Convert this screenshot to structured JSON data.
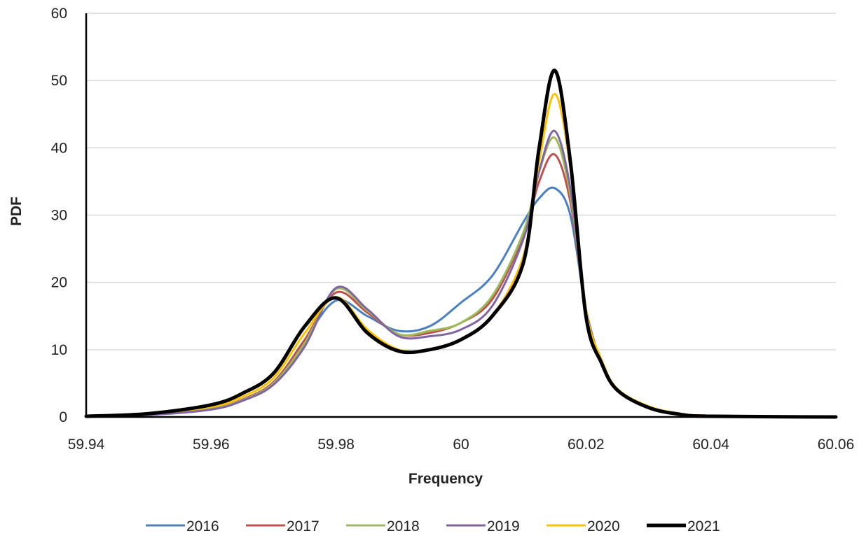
{
  "chart_data": {
    "type": "line",
    "title": "",
    "xlabel": "Frequency",
    "ylabel": "PDF",
    "xlim": [
      59.94,
      60.06
    ],
    "ylim": [
      0,
      60
    ],
    "xticks": [
      59.94,
      59.96,
      59.98,
      60,
      60.02,
      60.04,
      60.06
    ],
    "xtick_labels": [
      "59.94",
      "59.96",
      "59.98",
      "60",
      "60.02",
      "60.04",
      "60.06"
    ],
    "yticks": [
      0,
      10,
      20,
      30,
      40,
      50,
      60
    ],
    "ytick_labels": [
      "0",
      "10",
      "20",
      "30",
      "40",
      "50",
      "60"
    ],
    "grid": "horizontal",
    "legend_position": "bottom",
    "series": [
      {
        "name": "2016",
        "color": "#4a7fc1",
        "points": [
          [
            59.94,
            0.1
          ],
          [
            59.95,
            0.4
          ],
          [
            59.96,
            1.2
          ],
          [
            59.965,
            2.5
          ],
          [
            59.97,
            5.0
          ],
          [
            59.975,
            11.5
          ],
          [
            59.98,
            17.3
          ],
          [
            59.985,
            15.0
          ],
          [
            59.99,
            12.8
          ],
          [
            59.995,
            13.5
          ],
          [
            60.0,
            17.0
          ],
          [
            60.005,
            21.0
          ],
          [
            60.01,
            29.0
          ],
          [
            60.0125,
            32.5
          ],
          [
            60.015,
            34.0
          ],
          [
            60.0175,
            30.0
          ],
          [
            60.02,
            16.0
          ],
          [
            60.0225,
            8.0
          ],
          [
            60.025,
            4.0
          ],
          [
            60.03,
            1.5
          ],
          [
            60.035,
            0.5
          ],
          [
            60.04,
            0.2
          ],
          [
            60.06,
            0.0
          ]
        ]
      },
      {
        "name": "2017",
        "color": "#c0504d",
        "points": [
          [
            59.94,
            0.1
          ],
          [
            59.95,
            0.4
          ],
          [
            59.96,
            1.2
          ],
          [
            59.965,
            2.6
          ],
          [
            59.97,
            5.2
          ],
          [
            59.975,
            11.5
          ],
          [
            59.98,
            18.5
          ],
          [
            59.985,
            15.5
          ],
          [
            59.99,
            12.3
          ],
          [
            59.995,
            12.5
          ],
          [
            60.0,
            14.0
          ],
          [
            60.005,
            17.5
          ],
          [
            60.01,
            27.0
          ],
          [
            60.0125,
            35.0
          ],
          [
            60.015,
            39.0
          ],
          [
            60.0175,
            32.0
          ],
          [
            60.02,
            16.0
          ],
          [
            60.0225,
            8.0
          ],
          [
            60.025,
            4.0
          ],
          [
            60.03,
            1.5
          ],
          [
            60.035,
            0.5
          ],
          [
            60.04,
            0.2
          ],
          [
            60.06,
            0.0
          ]
        ]
      },
      {
        "name": "2018",
        "color": "#9bbb59",
        "points": [
          [
            59.94,
            0.1
          ],
          [
            59.95,
            0.4
          ],
          [
            59.96,
            1.2
          ],
          [
            59.965,
            2.5
          ],
          [
            59.97,
            5.0
          ],
          [
            59.975,
            11.0
          ],
          [
            59.98,
            19.0
          ],
          [
            59.985,
            15.8
          ],
          [
            59.99,
            12.3
          ],
          [
            59.995,
            12.8
          ],
          [
            60.0,
            14.0
          ],
          [
            60.005,
            18.0
          ],
          [
            60.01,
            27.5
          ],
          [
            60.0125,
            36.5
          ],
          [
            60.015,
            41.5
          ],
          [
            60.0175,
            33.0
          ],
          [
            60.02,
            16.0
          ],
          [
            60.0225,
            8.0
          ],
          [
            60.025,
            4.0
          ],
          [
            60.03,
            1.5
          ],
          [
            60.035,
            0.5
          ],
          [
            60.04,
            0.2
          ],
          [
            60.06,
            0.0
          ]
        ]
      },
      {
        "name": "2019",
        "color": "#8064a2",
        "points": [
          [
            59.94,
            0.1
          ],
          [
            59.95,
            0.3
          ],
          [
            59.96,
            1.1
          ],
          [
            59.965,
            2.4
          ],
          [
            59.97,
            4.8
          ],
          [
            59.975,
            10.5
          ],
          [
            59.98,
            19.2
          ],
          [
            59.985,
            16.0
          ],
          [
            59.99,
            12.0
          ],
          [
            59.995,
            12.0
          ],
          [
            60.0,
            13.0
          ],
          [
            60.005,
            16.5
          ],
          [
            60.01,
            26.5
          ],
          [
            60.0125,
            36.5
          ],
          [
            60.015,
            42.5
          ],
          [
            60.0175,
            34.0
          ],
          [
            60.02,
            16.0
          ],
          [
            60.0225,
            8.0
          ],
          [
            60.025,
            4.0
          ],
          [
            60.03,
            1.5
          ],
          [
            60.035,
            0.5
          ],
          [
            60.04,
            0.2
          ],
          [
            60.06,
            0.0
          ]
        ]
      },
      {
        "name": "2020",
        "color": "#ffc000",
        "points": [
          [
            59.94,
            0.1
          ],
          [
            59.95,
            0.5
          ],
          [
            59.96,
            1.5
          ],
          [
            59.965,
            3.0
          ],
          [
            59.97,
            5.8
          ],
          [
            59.975,
            12.5
          ],
          [
            59.98,
            17.8
          ],
          [
            59.985,
            13.0
          ],
          [
            59.99,
            10.0
          ],
          [
            59.995,
            10.0
          ],
          [
            60.0,
            11.5
          ],
          [
            60.005,
            15.0
          ],
          [
            60.01,
            24.0
          ],
          [
            60.0125,
            38.0
          ],
          [
            60.015,
            48.0
          ],
          [
            60.0175,
            37.0
          ],
          [
            60.02,
            16.0
          ],
          [
            60.0225,
            8.5
          ],
          [
            60.025,
            4.2
          ],
          [
            60.03,
            1.6
          ],
          [
            60.035,
            0.5
          ],
          [
            60.04,
            0.2
          ],
          [
            60.06,
            0.0
          ]
        ]
      },
      {
        "name": "2021",
        "color": "#000000",
        "points": [
          [
            59.94,
            0.1
          ],
          [
            59.95,
            0.5
          ],
          [
            59.96,
            1.8
          ],
          [
            59.965,
            3.5
          ],
          [
            59.97,
            6.5
          ],
          [
            59.975,
            13.5
          ],
          [
            59.98,
            17.7
          ],
          [
            59.985,
            12.5
          ],
          [
            59.99,
            9.8
          ],
          [
            59.995,
            10.0
          ],
          [
            60.0,
            11.5
          ],
          [
            60.005,
            15.0
          ],
          [
            60.01,
            23.0
          ],
          [
            60.0125,
            40.0
          ],
          [
            60.015,
            51.5
          ],
          [
            60.0175,
            38.0
          ],
          [
            60.02,
            15.0
          ],
          [
            60.0225,
            8.0
          ],
          [
            60.025,
            4.0
          ],
          [
            60.03,
            1.4
          ],
          [
            60.035,
            0.4
          ],
          [
            60.04,
            0.1
          ],
          [
            60.06,
            0.0
          ]
        ]
      }
    ]
  }
}
